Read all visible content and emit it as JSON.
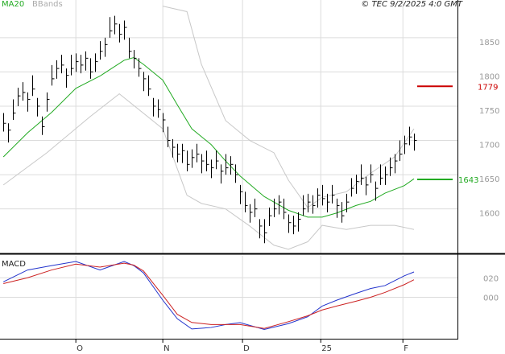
{
  "chart_data": [
    {
      "type": "ohlc",
      "legend": [
        {
          "name": "MA20",
          "color": "#22aa22"
        },
        {
          "name": "BBands",
          "color": "#bbbbbb"
        }
      ],
      "copyright": "© TEC 9/2/2025 4:0 GMT",
      "xlim": [
        -0.7,
        94
      ],
      "ylim": [
        1535,
        1905
      ],
      "yticks": [
        1600,
        1650,
        1700,
        1750,
        1800,
        1850
      ],
      "grid": true,
      "close": [
        1725,
        1715,
        1740,
        1765,
        1770,
        1760,
        1775,
        1750,
        1720,
        1760,
        1790,
        1805,
        1810,
        1795,
        1805,
        1815,
        1810,
        1820,
        1800,
        1815,
        1830,
        1840,
        1860,
        1870,
        1855,
        1865,
        1830,
        1820,
        1805,
        1790,
        1775,
        1750,
        1745,
        1730,
        1700,
        1690,
        1680,
        1685,
        1665,
        1675,
        1680,
        1670,
        1665,
        1660,
        1670,
        1655,
        1660,
        1665,
        1650,
        1625,
        1605,
        1595,
        1600,
        1575,
        1565,
        1590,
        1600,
        1610,
        1595,
        1580,
        1575,
        1585,
        1600,
        1610,
        1605,
        1620,
        1615,
        1610,
        1620,
        1605,
        1590,
        1610,
        1630,
        1640,
        1645,
        1635,
        1650,
        1630,
        1645,
        1650,
        1660,
        1670,
        1680,
        1695,
        1705,
        1700
      ],
      "high": [
        1740,
        1725,
        1760,
        1777,
        1785,
        1770,
        1795,
        1762,
        1735,
        1770,
        1810,
        1817,
        1825,
        1805,
        1825,
        1827,
        1825,
        1830,
        1820,
        1827,
        1845,
        1850,
        1880,
        1882,
        1870,
        1875,
        1850,
        1832,
        1820,
        1800,
        1795,
        1762,
        1760,
        1740,
        1720,
        1702,
        1695,
        1695,
        1685,
        1687,
        1695,
        1680,
        1685,
        1672,
        1685,
        1665,
        1680,
        1677,
        1665,
        1635,
        1625,
        1607,
        1615,
        1585,
        1585,
        1602,
        1615,
        1620,
        1615,
        1592,
        1590,
        1595,
        1620,
        1622,
        1620,
        1630,
        1635,
        1622,
        1635,
        1615,
        1610,
        1622,
        1645,
        1650,
        1665,
        1647,
        1665,
        1640,
        1665,
        1662,
        1675,
        1680,
        1700,
        1707,
        1720,
        1710
      ],
      "low": [
        1713,
        1697,
        1730,
        1750,
        1758,
        1742,
        1765,
        1735,
        1708,
        1742,
        1780,
        1790,
        1798,
        1777,
        1795,
        1800,
        1798,
        1802,
        1790,
        1800,
        1818,
        1822,
        1850,
        1855,
        1843,
        1847,
        1820,
        1805,
        1793,
        1772,
        1765,
        1735,
        1733,
        1712,
        1690,
        1675,
        1668,
        1667,
        1655,
        1660,
        1668,
        1652,
        1655,
        1645,
        1658,
        1637,
        1650,
        1650,
        1638,
        1607,
        1595,
        1580,
        1588,
        1557,
        1550,
        1575,
        1588,
        1592,
        1585,
        1565,
        1563,
        1567,
        1590,
        1595,
        1593,
        1602,
        1605,
        1595,
        1608,
        1587,
        1580,
        1595,
        1618,
        1622,
        1635,
        1620,
        1638,
        1612,
        1635,
        1635,
        1648,
        1652,
        1670,
        1680,
        1693,
        1685
      ],
      "ma": {
        "color": "#22aa22",
        "x": [
          0,
          5,
          10,
          15,
          20,
          25,
          27,
          29,
          33,
          36,
          39,
          43,
          46,
          49,
          54,
          59,
          63,
          66,
          69,
          73,
          76,
          79,
          83,
          85
        ],
        "values": [
          1676,
          1711,
          1741,
          1776,
          1794,
          1817,
          1821,
          1811,
          1788,
          1752,
          1717,
          1694,
          1670,
          1648,
          1618,
          1598,
          1588,
          1588,
          1594,
          1605,
          1611,
          1623,
          1634,
          1644
        ]
      },
      "bands": {
        "color": "#c8c8c8",
        "x": [
          0,
          9,
          18,
          24,
          33,
          38,
          41,
          46,
          51,
          56,
          59,
          63,
          66,
          71,
          76,
          81,
          85
        ],
        "upper": [
          null,
          null,
          null,
          null,
          1896,
          1888,
          1811,
          1729,
          1700,
          1682,
          1642,
          1602,
          1617,
          1625,
          1652,
          1676,
          1717
        ],
        "lower": [
          1635,
          1682,
          1735,
          1768,
          1717,
          1620,
          1608,
          1600,
          1575,
          1547,
          1541,
          1552,
          1576,
          1570,
          1576,
          1576,
          1570
        ]
      },
      "markers": [
        {
          "value": 1779,
          "color": "#cc0000"
        },
        {
          "value": 1643,
          "color": "#22aa22"
        }
      ]
    },
    {
      "type": "line",
      "title": "MACD",
      "xlim": [
        -0.7,
        94
      ],
      "xticks": [
        {
          "value": 15,
          "label": "O"
        },
        {
          "value": 33,
          "label": "N"
        },
        {
          "value": 49.5,
          "label": "D"
        },
        {
          "value": 65.7,
          "label": "25"
        },
        {
          "value": 82.7,
          "label": "F"
        }
      ],
      "ylim": [
        -42.5,
        42.5
      ],
      "yticks": [
        {
          "value": 20,
          "label": "020"
        },
        {
          "value": 0,
          "label": "000"
        }
      ],
      "x": [
        0,
        5,
        10,
        15,
        20,
        25,
        27,
        29,
        33,
        36,
        39,
        43,
        46,
        49,
        54,
        59,
        63,
        66,
        69,
        73,
        76,
        79,
        83,
        85
      ],
      "series": [
        {
          "color": "#2233cc",
          "values": [
            15.8,
            28,
            32.5,
            36.7,
            28,
            36.7,
            32.5,
            25,
            -3,
            -22,
            -32.5,
            -31,
            -28,
            -26,
            -33,
            -27,
            -20,
            -9,
            -3,
            4,
            9,
            12,
            22,
            26
          ]
        },
        {
          "color": "#cc2222",
          "values": [
            14,
            20,
            28,
            34,
            31,
            35,
            33,
            27,
            2,
            -17.5,
            -25.8,
            -28,
            -28,
            -28,
            -32,
            -25,
            -19,
            -13,
            -9,
            -4,
            0,
            5,
            13,
            18
          ]
        }
      ]
    }
  ]
}
